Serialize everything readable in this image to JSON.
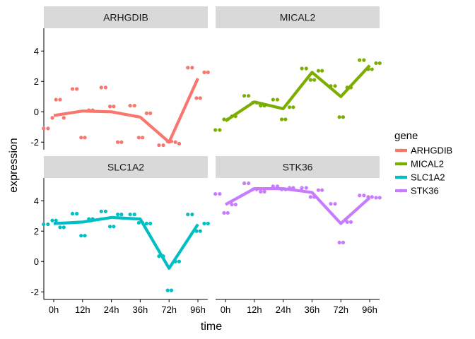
{
  "chart_data": {
    "type": "line",
    "layout": "facet-2x2",
    "xlabel": "time",
    "ylabel": "expression",
    "categories": [
      "0h",
      "12h",
      "24h",
      "36h",
      "72h",
      "96h"
    ],
    "ylim": [
      -2.5,
      5.5
    ],
    "yticks": [
      -2,
      0,
      2,
      4
    ],
    "ytick_labels": [
      "-2",
      "0",
      "2",
      "4"
    ],
    "grid": false,
    "legend": {
      "title": "gene",
      "position": "right",
      "entries": [
        "ARHGDIB",
        "MICAL2",
        "SLC1A2",
        "STK36"
      ]
    },
    "series": [
      {
        "name": "ARHGDIB",
        "color": "#F8766D",
        "mean": [
          -0.25,
          0.05,
          0.0,
          -0.35,
          -2.0,
          2.2
        ],
        "points": [
          [
            -1.1,
            -1.1,
            -0.4,
            0.8,
            0.8,
            -0.4
          ],
          [
            1.5,
            1.5,
            -1.7,
            -1.7,
            0.1,
            0.1
          ],
          [
            1.6,
            1.6,
            0.35,
            0.35,
            -2.0,
            -2.0
          ],
          [
            0.4,
            0.4,
            -1.7,
            -1.7,
            -0.1,
            -0.1
          ],
          [
            -2.2,
            -2.2,
            -1.95,
            -1.95,
            -2.0,
            -2.1
          ],
          [
            2.9,
            2.9,
            0.9,
            0.9,
            2.6,
            2.6
          ]
        ]
      },
      {
        "name": "MICAL2",
        "color": "#7CAE00",
        "mean": [
          -0.6,
          0.65,
          0.2,
          2.6,
          1.0,
          3.05
        ],
        "points": [
          [
            -1.2,
            -1.2,
            -0.5,
            -0.5,
            -0.3,
            -0.3
          ],
          [
            1.05,
            1.05,
            0.6,
            0.6,
            0.4,
            0.4
          ],
          [
            0.8,
            0.8,
            -0.5,
            -0.5,
            0.3,
            0.3
          ],
          [
            2.85,
            2.85,
            2.1,
            2.1,
            2.7,
            2.7
          ],
          [
            1.7,
            1.7,
            -0.35,
            -0.35,
            1.6,
            1.6
          ],
          [
            3.4,
            3.4,
            2.8,
            2.8,
            3.2,
            3.2
          ]
        ]
      },
      {
        "name": "SLC1A2",
        "color": "#00BFC4",
        "mean": [
          2.5,
          2.6,
          2.9,
          2.8,
          -0.45,
          2.45
        ],
        "points": [
          [
            2.45,
            2.45,
            2.7,
            2.7,
            2.25,
            2.25
          ],
          [
            3.15,
            3.15,
            1.7,
            1.7,
            2.8,
            2.8
          ],
          [
            3.3,
            3.3,
            2.3,
            2.3,
            3.1,
            3.1
          ],
          [
            3.1,
            3.1,
            2.55,
            2.55,
            2.5,
            2.5
          ],
          [
            0.35,
            0.35,
            -1.9,
            -1.9,
            0.0,
            0.0
          ],
          [
            3.1,
            3.1,
            2.0,
            2.0,
            2.5,
            2.5
          ]
        ]
      },
      {
        "name": "STK36",
        "color": "#C77CFF",
        "mean": [
          3.75,
          4.8,
          4.8,
          4.55,
          2.5,
          4.2
        ],
        "points": [
          [
            4.45,
            4.45,
            3.2,
            3.2,
            3.75,
            3.75
          ],
          [
            5.15,
            5.15,
            4.75,
            4.75,
            4.6,
            4.6
          ],
          [
            4.95,
            4.95,
            4.75,
            4.75,
            4.85,
            4.85
          ],
          [
            4.85,
            4.85,
            4.25,
            4.25,
            4.7,
            4.7
          ],
          [
            3.8,
            3.8,
            1.25,
            1.25,
            2.6,
            2.6
          ],
          [
            4.35,
            4.35,
            4.25,
            4.25,
            4.2,
            4.2
          ]
        ]
      }
    ]
  }
}
